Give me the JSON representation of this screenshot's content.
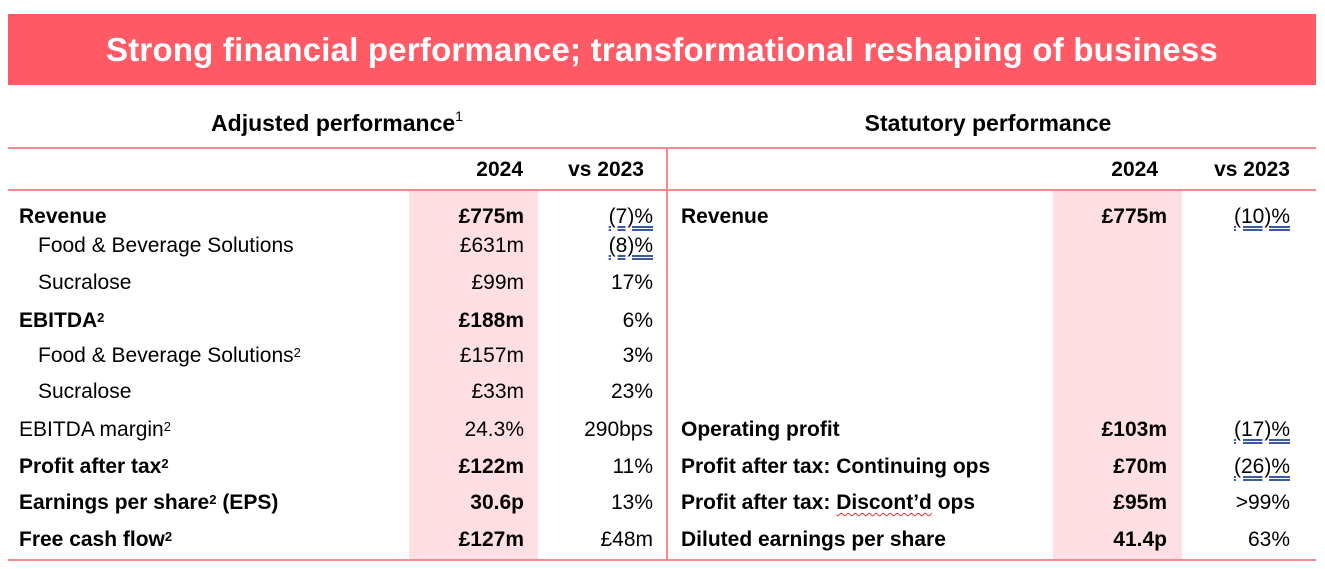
{
  "banner": {
    "title": "Strong financial performance; transformational reshaping of business"
  },
  "adjusted": {
    "heading": "Adjusted performance",
    "heading_sup": "1",
    "col_year": "2024",
    "col_vs": "vs 2023",
    "rows": [
      {
        "label": "Revenue",
        "sup": "",
        "value": "£775m",
        "change": "(7)%",
        "bold": true,
        "indent": false
      },
      {
        "label": "Food & Beverage Solutions",
        "sup": "",
        "value": "£631m",
        "change": "(8)%",
        "bold": false,
        "indent": true
      },
      {
        "label": "Sucralose",
        "sup": "",
        "value": "£99m",
        "change": "17%",
        "bold": false,
        "indent": true
      },
      {
        "label": "EBITDA",
        "sup": "2",
        "value": "£188m",
        "change": "6%",
        "bold": true,
        "indent": false
      },
      {
        "label": "Food & Beverage Solutions",
        "sup": "2",
        "value": "£157m",
        "change": "3%",
        "bold": false,
        "indent": true
      },
      {
        "label": "Sucralose",
        "sup": "",
        "value": "£33m",
        "change": "23%",
        "bold": false,
        "indent": true
      },
      {
        "label": "EBITDA margin",
        "sup": "2",
        "value": "24.3%",
        "change": "290bps",
        "bold": false,
        "indent": false
      },
      {
        "label": "Profit after tax",
        "sup": "2",
        "value": "£122m",
        "change": "11%",
        "bold": true,
        "indent": false
      },
      {
        "label": "Earnings per share",
        "sup": "2",
        "suffix": " (EPS)",
        "value": "30.6p",
        "change": "13%",
        "bold": true,
        "indent": false
      },
      {
        "label": "Free cash flow",
        "sup": "2",
        "value": "£127m",
        "change": "£48m",
        "bold": true,
        "indent": false
      }
    ]
  },
  "statutory": {
    "heading": "Statutory performance",
    "col_year": "2024",
    "col_vs": "vs 2023",
    "rows": [
      {
        "label": "Revenue",
        "value": "£775m",
        "change": "(10)%"
      },
      {
        "label": "Operating profit",
        "value": "£103m",
        "change": "(17)%"
      },
      {
        "label": "Profit after tax: Continuing ops",
        "value": "£70m",
        "change": "(26)%"
      },
      {
        "label_a": "Profit after tax: ",
        "label_b": "Discont’d",
        "label_c": " ops",
        "value": "£95m",
        "change": ">99%"
      },
      {
        "label": "Diluted earnings per share",
        "value": "41.4p",
        "change": "63%"
      }
    ]
  },
  "colors": {
    "banner": "#ff5a66",
    "rule": "#f28a8f",
    "shade": "#ffdfe3"
  }
}
